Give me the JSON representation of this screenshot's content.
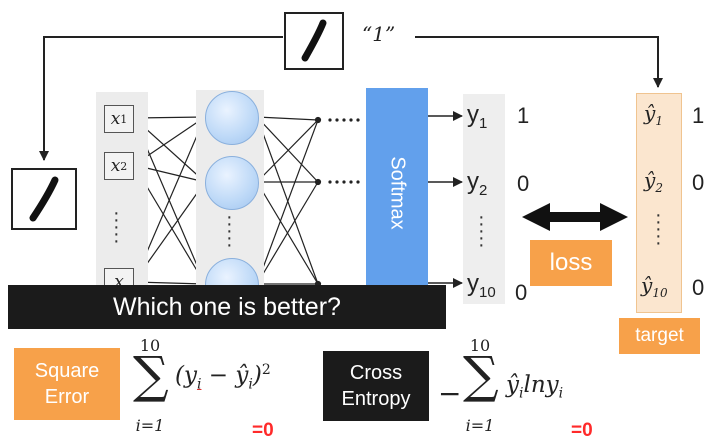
{
  "diagram": {
    "top_digit_label": "“1”",
    "inputs": [
      {
        "var": "x",
        "sub": "1"
      },
      {
        "var": "x",
        "sub": "2"
      },
      {
        "var": "x",
        "sub": ""
      }
    ],
    "softmax_label": "Softmax",
    "outputs": [
      {
        "label": "y",
        "sub": "1",
        "value": "1"
      },
      {
        "label": "y",
        "sub": "2",
        "value": "0"
      },
      {
        "label": "y",
        "sub": "10",
        "value": "0"
      }
    ],
    "targets": [
      {
        "label": "ŷ",
        "sub": "1",
        "value": "1"
      },
      {
        "label": "ŷ",
        "sub": "2",
        "value": "0"
      },
      {
        "label": "ŷ",
        "sub": "10",
        "value": "0"
      }
    ],
    "loss_label": "loss",
    "target_label": "target"
  },
  "banner": {
    "text": "Which one is better?"
  },
  "formulas": {
    "square_error": {
      "label_line1": "Square",
      "label_line2": "Error",
      "upper": "10",
      "lower": "i=1",
      "result": "=0"
    },
    "cross_entropy": {
      "label_line1": "Cross",
      "label_line2": "Entropy",
      "upper": "10",
      "lower": "i=1",
      "result": "=0"
    }
  },
  "colors": {
    "softmax": "#62a0ec",
    "orange": "#f7a14a",
    "target_bg": "#fbe6cf",
    "zero_red": "#ff2a2a",
    "dark": "#1b1b1b"
  }
}
